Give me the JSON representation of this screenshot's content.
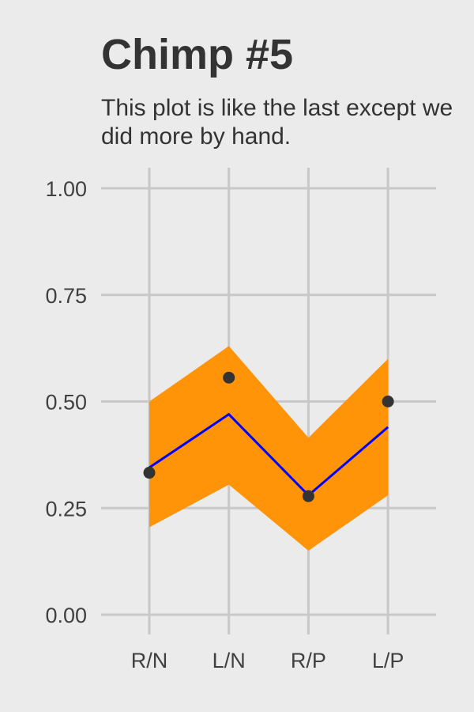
{
  "chart_data": {
    "type": "line",
    "title": "Chimp #5",
    "subtitle": "This plot is like the last except we did more by hand.",
    "xlabel": "",
    "ylabel": "",
    "categories": [
      "R/N",
      "L/N",
      "R/P",
      "L/P"
    ],
    "ylim": [
      0,
      1
    ],
    "yticks": [
      "0.00",
      "0.25",
      "0.50",
      "0.75",
      "1.00"
    ],
    "ytick_values": [
      0,
      0.25,
      0.5,
      0.75,
      1.0
    ],
    "grid": true,
    "legend": "none",
    "ribbon": {
      "lower": [
        0.205,
        0.305,
        0.15,
        0.28
      ],
      "upper": [
        0.5,
        0.63,
        0.415,
        0.6
      ],
      "color": "#ff9408"
    },
    "fit_line": {
      "values": [
        0.345,
        0.47,
        0.28,
        0.44
      ],
      "color": "#0000ff"
    },
    "points": {
      "values": [
        0.333,
        0.556,
        0.278,
        0.5
      ],
      "color": "#333333"
    },
    "colors": {
      "background": "#ebebeb",
      "grid": "#c8c8c8",
      "text": "#333333"
    }
  }
}
